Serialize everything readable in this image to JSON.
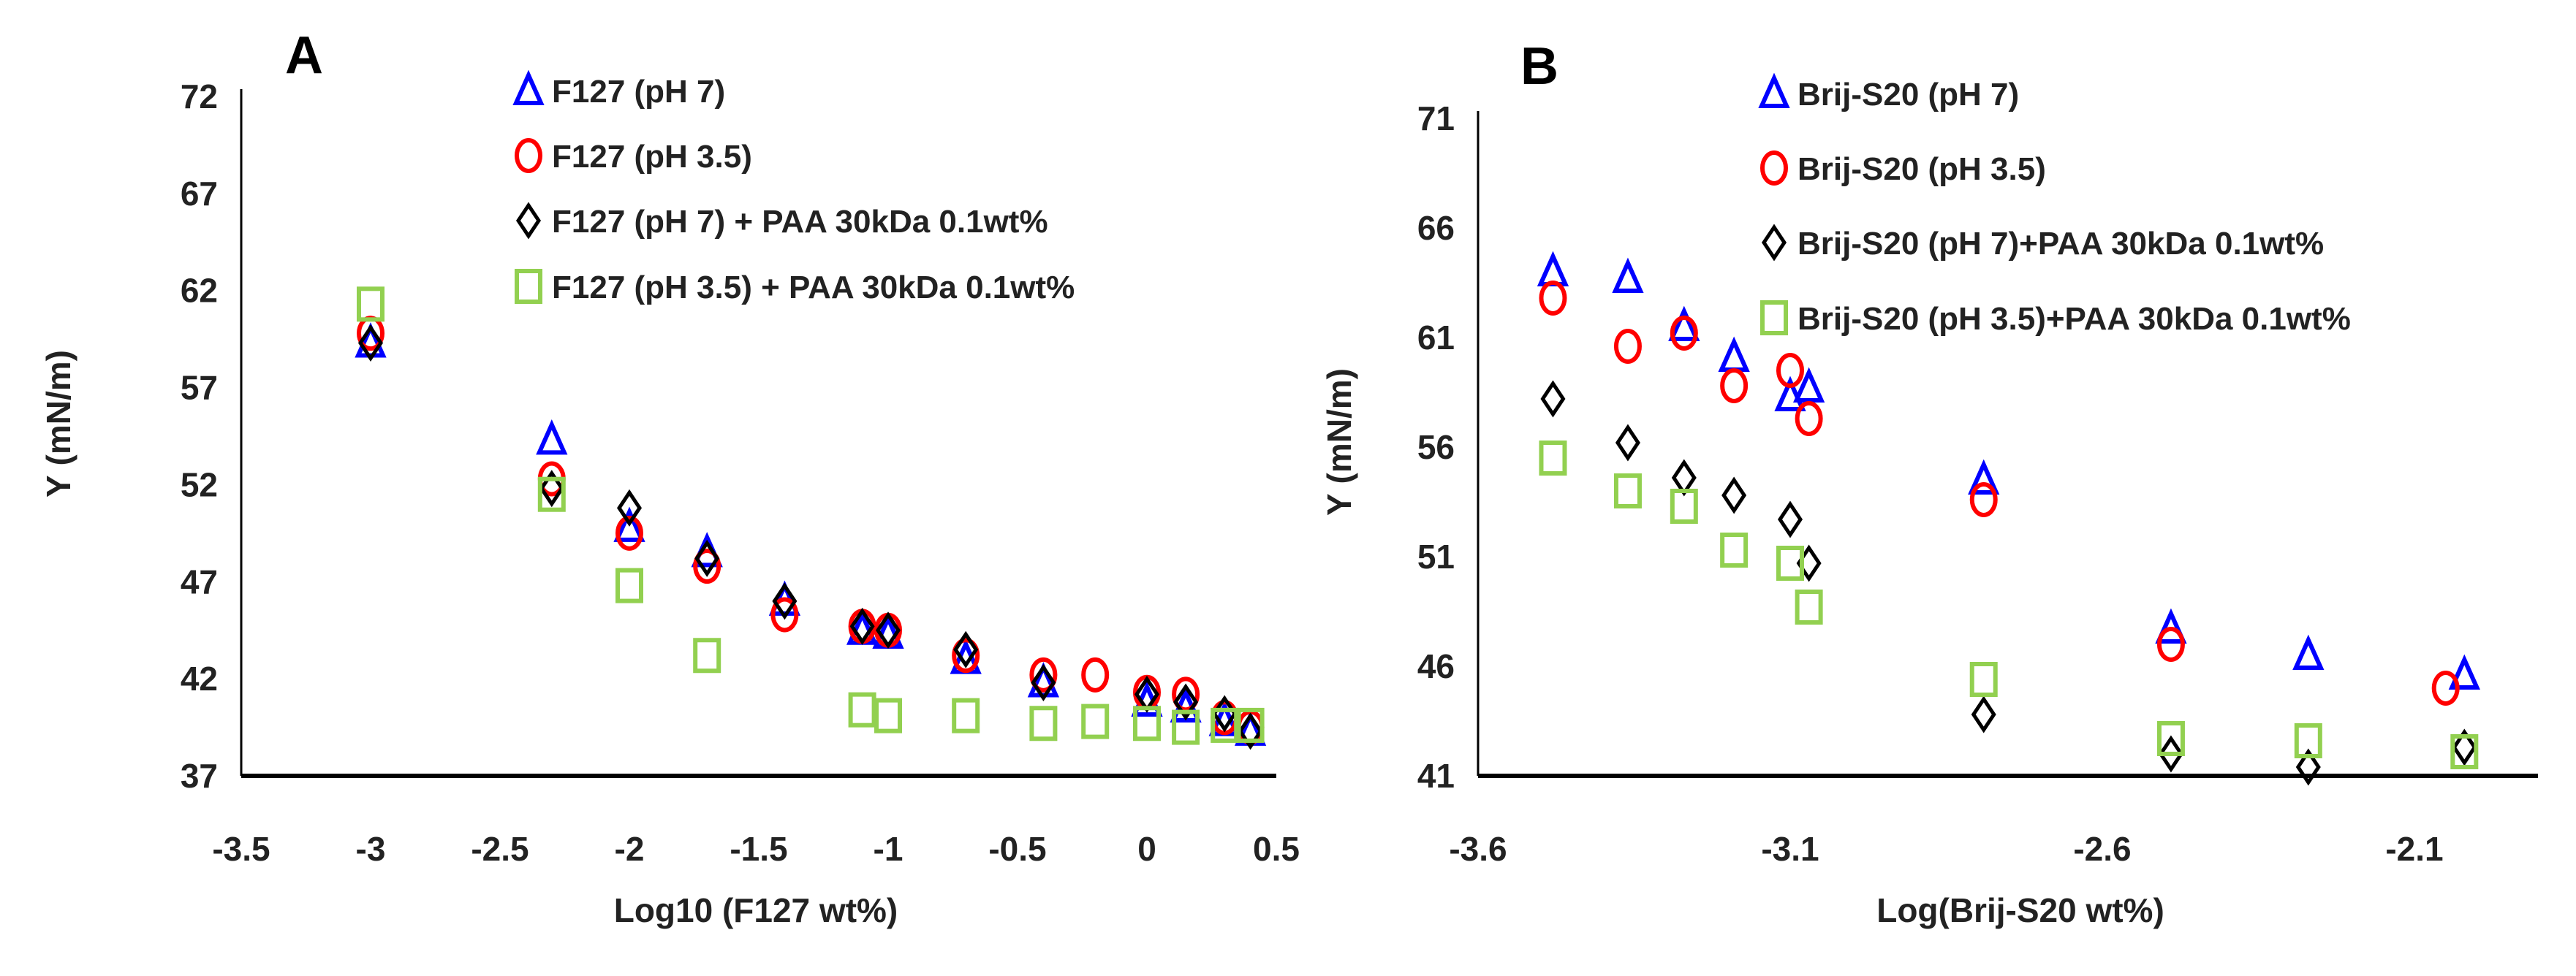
{
  "chart_data": [
    {
      "type": "scatter",
      "panel_label": "A",
      "xlabel": "Log10 (F127 wt%)",
      "ylabel": "Υ (mN/m)",
      "xlim": [
        -3.5,
        0.5
      ],
      "ylim": [
        37,
        72
      ],
      "xticks": [
        "-3.5",
        "-3",
        "-2.5",
        "-2",
        "-1.5",
        "-1",
        "-0.5",
        "0",
        "0.5"
      ],
      "yticks": [
        "37",
        "42",
        "47",
        "52",
        "57",
        "62",
        "67",
        "72"
      ],
      "grid": false,
      "legend_position": "top-center",
      "series": [
        {
          "name": "F127 (pH 7)",
          "marker": "triangle",
          "color": "#0000ff",
          "x": [
            -3,
            -2.3,
            -2,
            -1.7,
            -1.4,
            -1.1,
            -1.0,
            -0.7,
            -0.4,
            0,
            0.15,
            0.3,
            0.4
          ],
          "y": [
            59.3,
            54.3,
            49.8,
            48.5,
            46.0,
            44.5,
            44.3,
            43.0,
            41.8,
            40.8,
            40.5,
            39.8,
            39.3
          ]
        },
        {
          "name": "F127 (pH 3.5)",
          "marker": "circle",
          "color": "#ff0000",
          "x": [
            -3,
            -2.3,
            -2,
            -1.7,
            -1.4,
            -1.1,
            -1.0,
            -0.7,
            -0.4,
            -0.2,
            0,
            0.15,
            0.3,
            0.4
          ],
          "y": [
            59.8,
            52.3,
            49.5,
            47.8,
            45.3,
            44.7,
            44.5,
            43.2,
            42.2,
            42.2,
            41.3,
            41.2,
            40.0,
            39.5
          ]
        },
        {
          "name": "F127 (pH 7) + PAA 30kDa 0.1wt%",
          "marker": "diamond",
          "color": "#000000",
          "x": [
            -3,
            -2.3,
            -2,
            -1.7,
            -1.4,
            -1.1,
            -1.0,
            -0.7,
            -0.4,
            0,
            0.15,
            0.3,
            0.4
          ],
          "y": [
            59.3,
            51.8,
            50.8,
            48.2,
            46.0,
            44.7,
            44.5,
            43.5,
            41.8,
            41.2,
            40.8,
            40.2,
            39.3
          ]
        },
        {
          "name": "F127 (pH 3.5) + PAA 30kDa 0.1wt%",
          "marker": "square",
          "color": "#92d050",
          "x": [
            -3,
            -2.3,
            -2,
            -1.7,
            -1.1,
            -1.0,
            -0.7,
            -0.4,
            -0.2,
            0,
            0.15,
            0.3,
            0.4
          ],
          "y": [
            61.3,
            51.5,
            46.8,
            43.2,
            40.4,
            40.1,
            40.1,
            39.7,
            39.8,
            39.7,
            39.5,
            39.6,
            39.6
          ]
        }
      ]
    },
    {
      "type": "scatter",
      "panel_label": "B",
      "xlabel": "Log(Brij-S20 wt%)",
      "ylabel": "Υ (mN/m)",
      "xlim": [
        -3.6,
        -1.9
      ],
      "ylim": [
        41,
        71
      ],
      "xticks": [
        "-3.6",
        "-3.1",
        "-2.6",
        "-2.1"
      ],
      "yticks": [
        "41",
        "46",
        "51",
        "56",
        "61",
        "66",
        "71"
      ],
      "grid": false,
      "legend_position": "top-right",
      "series": [
        {
          "name": "Brij-S20 (pH 7)",
          "marker": "triangle",
          "color": "#0000ff",
          "x": [
            -3.48,
            -3.36,
            -3.27,
            -3.19,
            -3.1,
            -3.07,
            -2.79,
            -2.49,
            -2.27,
            -2.02
          ],
          "y": [
            64.0,
            63.7,
            61.5,
            60.1,
            58.3,
            58.7,
            54.5,
            47.7,
            46.5,
            45.6
          ]
        },
        {
          "name": "Brij-S20 (pH 3.5)",
          "marker": "circle",
          "color": "#ff0000",
          "x": [
            -3.48,
            -3.36,
            -3.27,
            -3.19,
            -3.1,
            -3.07,
            -2.79,
            -2.49,
            -2.05
          ],
          "y": [
            62.8,
            60.6,
            61.2,
            58.8,
            59.5,
            57.3,
            53.6,
            47.0,
            45.0
          ]
        },
        {
          "name": "Brij-S20 (pH 7)+PAA 30kDa 0.1wt%",
          "marker": "diamond",
          "color": "#000000",
          "x": [
            -3.48,
            -3.36,
            -3.27,
            -3.19,
            -3.1,
            -3.07,
            -2.79,
            -2.49,
            -2.27,
            -2.02
          ],
          "y": [
            58.2,
            56.2,
            54.6,
            53.8,
            52.7,
            50.7,
            43.8,
            42.0,
            41.4,
            42.3
          ]
        },
        {
          "name": "Brij-S20 (pH 3.5)+PAA 30kDa 0.1wt%",
          "marker": "square",
          "color": "#92d050",
          "x": [
            -3.48,
            -3.36,
            -3.27,
            -3.19,
            -3.1,
            -3.07,
            -2.79,
            -2.49,
            -2.27,
            -2.02
          ],
          "y": [
            55.5,
            54.0,
            53.3,
            51.3,
            50.7,
            48.7,
            45.4,
            42.7,
            42.6,
            42.1
          ]
        }
      ]
    }
  ]
}
